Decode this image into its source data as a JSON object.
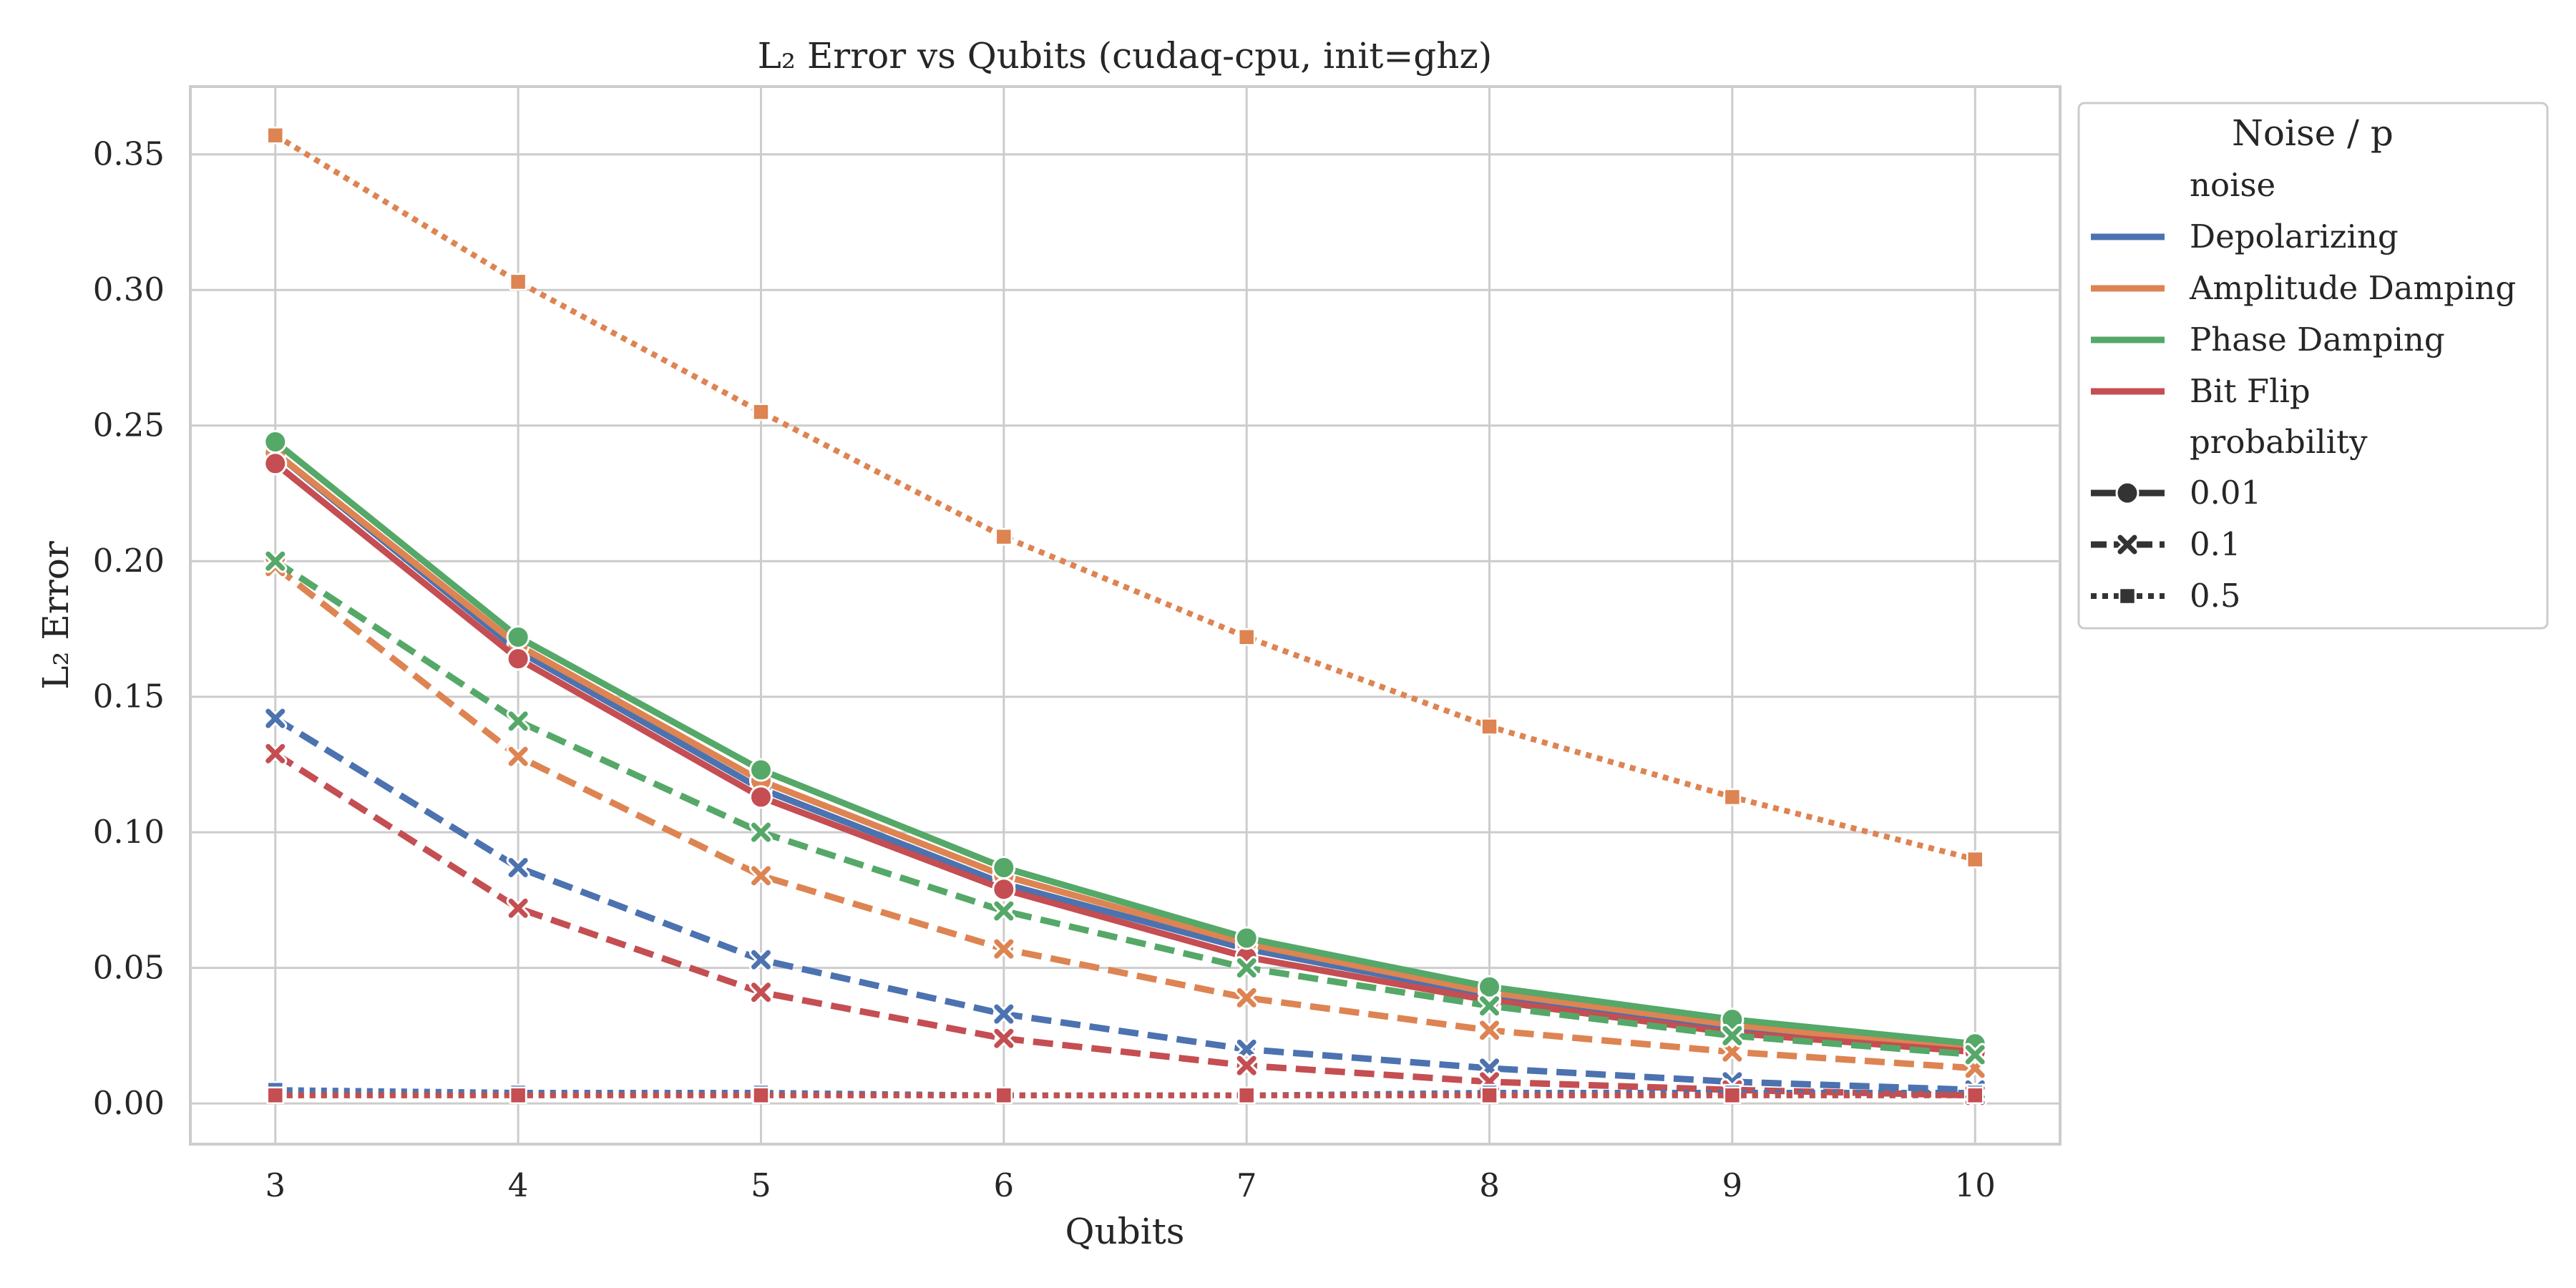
{
  "chart_data": {
    "type": "line",
    "title": "L₂ Error vs Qubits (cudaq-cpu, init=ghz)",
    "xlabel": "Qubits",
    "ylabel": "L₂ Error",
    "x": [
      3,
      4,
      5,
      6,
      7,
      8,
      9,
      10
    ],
    "xlim": [
      2.65,
      10.35
    ],
    "ylim": [
      -0.015,
      0.375
    ],
    "yticks": [
      0.0,
      0.05,
      0.1,
      0.15,
      0.2,
      0.25,
      0.3,
      0.35
    ],
    "ytick_labels": [
      "0.00",
      "0.05",
      "0.10",
      "0.15",
      "0.20",
      "0.25",
      "0.30",
      "0.35"
    ],
    "xtick_labels": [
      "3",
      "4",
      "5",
      "6",
      "7",
      "8",
      "9",
      "10"
    ],
    "grid": true,
    "legend_placement": "outside-upper-right",
    "legend": {
      "title": "Noise / p",
      "noise_header": "noise",
      "probability_header": "probability",
      "noise": [
        {
          "name": "Depolarizing",
          "color": "#4c72b0"
        },
        {
          "name": "Amplitude Damping",
          "color": "#dd8452"
        },
        {
          "name": "Phase Damping",
          "color": "#55a868"
        },
        {
          "name": "Bit Flip",
          "color": "#c44e52"
        }
      ],
      "probability": [
        {
          "name": "0.01",
          "marker": "circle",
          "dash": "solid"
        },
        {
          "name": "0.1",
          "marker": "x",
          "dash": "dashed"
        },
        {
          "name": "0.5",
          "marker": "square",
          "dash": "dotted"
        }
      ]
    },
    "series": [
      {
        "noise": "Depolarizing",
        "probability": "0.01",
        "color": "#4c72b0",
        "marker": "circle",
        "dash": "solid",
        "values": [
          0.24,
          0.167,
          0.116,
          0.081,
          0.057,
          0.04,
          0.027,
          0.02
        ]
      },
      {
        "noise": "Amplitude Damping",
        "probability": "0.01",
        "color": "#dd8452",
        "marker": "circle",
        "dash": "solid",
        "values": [
          0.24,
          0.169,
          0.119,
          0.084,
          0.059,
          0.041,
          0.029,
          0.02
        ]
      },
      {
        "noise": "Bit Flip",
        "probability": "0.01",
        "color": "#c44e52",
        "marker": "circle",
        "dash": "solid",
        "values": [
          0.236,
          0.164,
          0.113,
          0.079,
          0.054,
          0.038,
          0.026,
          0.019
        ]
      },
      {
        "noise": "Phase Damping",
        "probability": "0.01",
        "color": "#55a868",
        "marker": "circle",
        "dash": "solid",
        "values": [
          0.244,
          0.172,
          0.123,
          0.087,
          0.061,
          0.043,
          0.031,
          0.022
        ]
      },
      {
        "noise": "Depolarizing",
        "probability": "0.1",
        "color": "#4c72b0",
        "marker": "x",
        "dash": "dashed",
        "values": [
          0.142,
          0.087,
          0.053,
          0.033,
          0.02,
          0.013,
          0.008,
          0.005
        ]
      },
      {
        "noise": "Amplitude Damping",
        "probability": "0.1",
        "color": "#dd8452",
        "marker": "x",
        "dash": "dashed",
        "values": [
          0.198,
          0.128,
          0.084,
          0.057,
          0.039,
          0.027,
          0.019,
          0.013
        ]
      },
      {
        "noise": "Phase Damping",
        "probability": "0.1",
        "color": "#55a868",
        "marker": "x",
        "dash": "dashed",
        "values": [
          0.2,
          0.141,
          0.1,
          0.071,
          0.05,
          0.036,
          0.025,
          0.018
        ]
      },
      {
        "noise": "Bit Flip",
        "probability": "0.1",
        "color": "#c44e52",
        "marker": "x",
        "dash": "dashed",
        "values": [
          0.129,
          0.072,
          0.041,
          0.024,
          0.014,
          0.008,
          0.005,
          0.003
        ]
      },
      {
        "noise": "Amplitude Damping",
        "probability": "0.5",
        "color": "#dd8452",
        "marker": "square",
        "dash": "dotted",
        "values": [
          0.357,
          0.303,
          0.255,
          0.209,
          0.172,
          0.139,
          0.113,
          0.09
        ]
      },
      {
        "noise": "Depolarizing",
        "probability": "0.5",
        "color": "#4c72b0",
        "marker": "square",
        "dash": "dotted",
        "values": [
          0.005,
          0.004,
          0.004,
          0.003,
          0.003,
          0.004,
          0.004,
          0.004
        ]
      },
      {
        "noise": "Phase Damping",
        "probability": "0.5",
        "color": "#55a868",
        "marker": "square",
        "dash": "dotted",
        "values": [
          0.003,
          0.003,
          0.003,
          0.003,
          0.003,
          0.003,
          0.003,
          0.003
        ]
      },
      {
        "noise": "Bit Flip",
        "probability": "0.5",
        "color": "#c44e52",
        "marker": "square",
        "dash": "dotted",
        "values": [
          0.003,
          0.003,
          0.003,
          0.003,
          0.003,
          0.003,
          0.003,
          0.003
        ]
      }
    ]
  }
}
